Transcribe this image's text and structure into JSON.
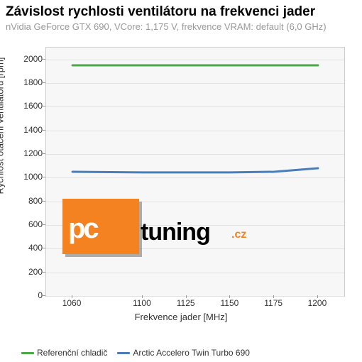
{
  "title": "Závislost rychlosti ventilátoru na frekvenci jader",
  "subtitle": "nVidia GeForce GTX 690, VCore: 1,175 V, frekvence VRAM: default (6,0 GHz)",
  "ylabel": "Rychlost otáčení ventilátoru [rpm]",
  "xlabel": "Frekvence jader [MHz]",
  "chart": {
    "type": "line",
    "x_ticks": [
      1060,
      1100,
      1125,
      1150,
      1175,
      1200
    ],
    "y_ticks": [
      0,
      200,
      400,
      600,
      800,
      1000,
      1200,
      1400,
      1600,
      1800,
      2000
    ],
    "x_min": 1045,
    "x_max": 1215,
    "y_min": 0,
    "y_max": 2100,
    "background_color": "#f7f7f7",
    "grid_color": "#e3e3e3",
    "series": [
      {
        "name": "Referenční chladič",
        "color": "#4ca64c",
        "width": 3,
        "data": [
          [
            1060,
            1950
          ],
          [
            1100,
            1950
          ],
          [
            1125,
            1950
          ],
          [
            1150,
            1950
          ],
          [
            1175,
            1950
          ],
          [
            1200,
            1950
          ]
        ]
      },
      {
        "name": "Arctic Accelero Twin Turbo 690",
        "color": "#4a7ebb",
        "width": 3,
        "data": [
          [
            1060,
            1050
          ],
          [
            1100,
            1045
          ],
          [
            1125,
            1045
          ],
          [
            1150,
            1045
          ],
          [
            1175,
            1050
          ],
          [
            1200,
            1080
          ]
        ]
      }
    ]
  },
  "logo": {
    "pc": "pc",
    "tuning": "tuning",
    "cz": ".cz",
    "block_color": "#f58220"
  },
  "legend": [
    {
      "label": "Referenční chladič",
      "color": "#4ca64c"
    },
    {
      "label": "Arctic Accelero Twin Turbo 690",
      "color": "#4a7ebb"
    }
  ]
}
